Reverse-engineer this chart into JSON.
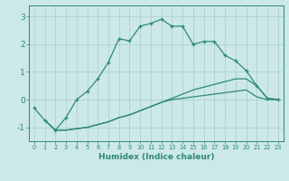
{
  "line1_x": [
    0,
    1,
    2,
    3,
    4,
    5,
    6,
    7,
    8,
    9,
    10,
    11,
    12,
    13,
    14,
    15,
    16,
    17,
    18,
    19,
    20,
    21,
    22,
    23
  ],
  "line1_y": [
    -0.3,
    -0.75,
    -1.1,
    -0.65,
    0.0,
    0.3,
    0.75,
    1.35,
    2.2,
    2.12,
    2.65,
    2.75,
    2.9,
    2.65,
    2.65,
    2.0,
    2.1,
    2.1,
    1.6,
    1.4,
    1.05,
    0.5,
    0.05,
    0.0
  ],
  "line2_x": [
    1,
    2,
    3,
    4,
    5,
    6,
    7,
    8,
    9,
    10,
    11,
    12,
    13,
    14,
    15,
    16,
    17,
    18,
    19,
    20,
    21,
    22,
    23
  ],
  "line2_y": [
    -0.75,
    -1.1,
    -1.1,
    -1.05,
    -1.0,
    -0.9,
    -0.8,
    -0.65,
    -0.55,
    -0.4,
    -0.25,
    -0.1,
    0.05,
    0.2,
    0.35,
    0.45,
    0.55,
    0.65,
    0.75,
    0.75,
    0.5,
    0.05,
    0.0
  ],
  "line3_x": [
    1,
    2,
    3,
    4,
    5,
    6,
    7,
    8,
    9,
    10,
    11,
    12,
    13,
    14,
    15,
    16,
    17,
    18,
    19,
    20,
    21,
    22,
    23
  ],
  "line3_y": [
    -0.75,
    -1.1,
    -1.1,
    -1.05,
    -1.0,
    -0.9,
    -0.8,
    -0.65,
    -0.55,
    -0.4,
    -0.25,
    -0.1,
    0.0,
    0.05,
    0.1,
    0.15,
    0.2,
    0.25,
    0.3,
    0.35,
    0.1,
    0.0,
    0.0
  ],
  "line_color": "#2e8b70",
  "bg_color": "#cce8e8",
  "grid_color": "#aacccc",
  "xlabel": "Humidex (Indice chaleur)",
  "ylim": [
    -1.5,
    3.4
  ],
  "xlim": [
    -0.5,
    23.5
  ],
  "xticks": [
    0,
    1,
    2,
    3,
    4,
    5,
    6,
    7,
    8,
    9,
    10,
    11,
    12,
    13,
    14,
    15,
    16,
    17,
    18,
    19,
    20,
    21,
    22,
    23
  ],
  "yticks": [
    -1,
    0,
    1,
    2,
    3
  ]
}
